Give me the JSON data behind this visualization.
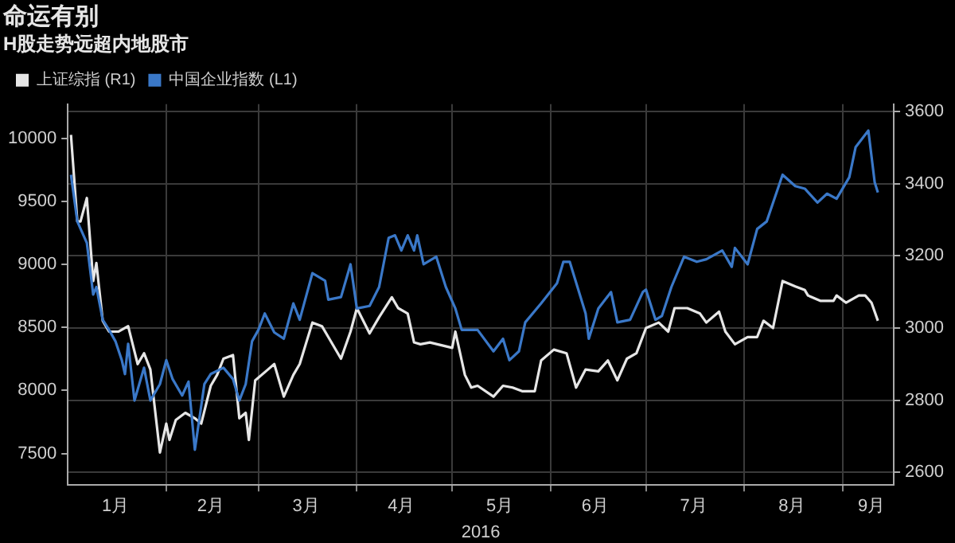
{
  "chart_data": {
    "type": "line",
    "title": "命运有别",
    "subtitle": "H股走势远超内地股市",
    "xlabel": "2016",
    "xlim": [
      "2016-01-01",
      "2016-09-17"
    ],
    "xticks": [
      {
        "value": "2016-01-16",
        "label": "1月"
      },
      {
        "value": "2016-02-01",
        "label": null
      },
      {
        "value": "2016-02-15",
        "label": "2月"
      },
      {
        "value": "2016-03-01",
        "label": null
      },
      {
        "value": "2016-03-16",
        "label": "3月"
      },
      {
        "value": "2016-04-01",
        "label": null
      },
      {
        "value": "2016-04-15",
        "label": "4月"
      },
      {
        "value": "2016-05-01",
        "label": null
      },
      {
        "value": "2016-05-16",
        "label": "5月"
      },
      {
        "value": "2016-06-01",
        "label": null
      },
      {
        "value": "2016-06-15",
        "label": "6月"
      },
      {
        "value": "2016-07-01",
        "label": null
      },
      {
        "value": "2016-07-16",
        "label": "7月"
      },
      {
        "value": "2016-08-01",
        "label": null
      },
      {
        "value": "2016-08-16",
        "label": "8月"
      },
      {
        "value": "2016-09-01",
        "label": null
      },
      {
        "value": "2016-09-10",
        "label": "9月"
      }
    ],
    "ylim": [
      7250,
      10270
    ],
    "yticks": [
      7500,
      8000,
      8500,
      9000,
      9500,
      10000
    ],
    "y2lim": [
      2565,
      3620
    ],
    "y2ticks": [
      2600,
      2800,
      3000,
      3200,
      3400,
      3600
    ],
    "grid": true,
    "legend": "top left",
    "marker": "none",
    "line_style": "solid",
    "series": [
      {
        "name": "上证综指 (R1)",
        "color": "#e6e6e6",
        "axis": "y2",
        "x": [
          "2016-01-02",
          "2016-01-04",
          "2016-01-05",
          "2016-01-07",
          "2016-01-09",
          "2016-01-10",
          "2016-01-12",
          "2016-01-14",
          "2016-01-17",
          "2016-01-20",
          "2016-01-23",
          "2016-01-25",
          "2016-01-27",
          "2016-01-30",
          "2016-02-01",
          "2016-02-02",
          "2016-02-04",
          "2016-02-07",
          "2016-02-10",
          "2016-02-12",
          "2016-02-15",
          "2016-02-17",
          "2016-02-19",
          "2016-02-22",
          "2016-02-24",
          "2016-02-26",
          "2016-02-27",
          "2016-02-29",
          "2016-03-04",
          "2016-03-06",
          "2016-03-09",
          "2016-03-12",
          "2016-03-14",
          "2016-03-18",
          "2016-03-21",
          "2016-03-23",
          "2016-03-27",
          "2016-03-30",
          "2016-04-01",
          "2016-04-05",
          "2016-04-08",
          "2016-04-12",
          "2016-04-14",
          "2016-04-17",
          "2016-04-19",
          "2016-04-21",
          "2016-04-24",
          "2016-05-01",
          "2016-05-02",
          "2016-05-05",
          "2016-05-07",
          "2016-05-09",
          "2016-05-14",
          "2016-05-17",
          "2016-05-20",
          "2016-05-23",
          "2016-05-27",
          "2016-05-29",
          "2016-06-02",
          "2016-06-06",
          "2016-06-09",
          "2016-06-12",
          "2016-06-16",
          "2016-06-19",
          "2016-06-22",
          "2016-06-25",
          "2016-06-28",
          "2016-07-01",
          "2016-07-05",
          "2016-07-08",
          "2016-07-10",
          "2016-07-14",
          "2016-07-18",
          "2016-07-20",
          "2016-07-24",
          "2016-07-26",
          "2016-07-29",
          "2016-08-02",
          "2016-08-05",
          "2016-08-07",
          "2016-08-10",
          "2016-08-13",
          "2016-08-17",
          "2016-08-20",
          "2016-08-21",
          "2016-08-25",
          "2016-08-29",
          "2016-08-30",
          "2016-09-02",
          "2016-09-06",
          "2016-09-08",
          "2016-09-10",
          "2016-09-12"
        ],
        "values": [
          3535,
          3295,
          3295,
          3360,
          3130,
          3180,
          3020,
          2990,
          2990,
          3005,
          2900,
          2930,
          2885,
          2655,
          2735,
          2690,
          2745,
          2765,
          2750,
          2735,
          2840,
          2870,
          2915,
          2925,
          2750,
          2765,
          2690,
          2855,
          2885,
          2900,
          2810,
          2870,
          2900,
          3015,
          3005,
          2975,
          2915,
          2990,
          3055,
          2985,
          3030,
          3085,
          3055,
          3040,
          2960,
          2955,
          2960,
          2945,
          2990,
          2870,
          2835,
          2840,
          2810,
          2840,
          2835,
          2825,
          2825,
          2910,
          2940,
          2930,
          2835,
          2885,
          2880,
          2910,
          2855,
          2915,
          2930,
          3000,
          3015,
          2990,
          3055,
          3055,
          3040,
          3015,
          3045,
          2990,
          2955,
          2975,
          2975,
          3020,
          3000,
          3130,
          3115,
          3105,
          3090,
          3075,
          3075,
          3090,
          3070,
          3090,
          3090,
          3070,
          3020
        ]
      },
      {
        "name": "中国企业指数 (L1)",
        "color": "#3a78c8",
        "x": [
          "2016-01-02",
          "2016-01-04",
          "2016-01-07",
          "2016-01-09",
          "2016-01-10",
          "2016-01-12",
          "2016-01-14",
          "2016-01-16",
          "2016-01-18",
          "2016-01-19",
          "2016-01-20",
          "2016-01-22",
          "2016-01-25",
          "2016-01-27",
          "2016-01-30",
          "2016-02-01",
          "2016-02-03",
          "2016-02-06",
          "2016-02-08",
          "2016-02-10",
          "2016-02-13",
          "2016-02-15",
          "2016-02-19",
          "2016-02-22",
          "2016-02-24",
          "2016-02-26",
          "2016-02-28",
          "2016-03-01",
          "2016-03-03",
          "2016-03-06",
          "2016-03-09",
          "2016-03-12",
          "2016-03-14",
          "2016-03-18",
          "2016-03-22",
          "2016-03-23",
          "2016-03-27",
          "2016-03-30",
          "2016-04-01",
          "2016-04-05",
          "2016-04-08",
          "2016-04-11",
          "2016-04-13",
          "2016-04-15",
          "2016-04-17",
          "2016-04-19",
          "2016-04-20",
          "2016-04-22",
          "2016-04-26",
          "2016-04-29",
          "2016-05-02",
          "2016-05-04",
          "2016-05-09",
          "2016-05-14",
          "2016-05-17",
          "2016-05-19",
          "2016-05-22",
          "2016-05-24",
          "2016-05-29",
          "2016-06-03",
          "2016-06-05",
          "2016-06-07",
          "2016-06-12",
          "2016-06-13",
          "2016-06-16",
          "2016-06-20",
          "2016-06-22",
          "2016-06-26",
          "2016-06-30",
          "2016-07-01",
          "2016-07-04",
          "2016-07-06",
          "2016-07-09",
          "2016-07-13",
          "2016-07-17",
          "2016-07-20",
          "2016-07-25",
          "2016-07-28",
          "2016-07-29",
          "2016-08-02",
          "2016-08-05",
          "2016-08-08",
          "2016-08-13",
          "2016-08-17",
          "2016-08-20",
          "2016-08-24",
          "2016-08-27",
          "2016-08-30",
          "2016-09-03",
          "2016-09-05",
          "2016-09-09",
          "2016-09-11",
          "2016-09-12"
        ],
        "values": [
          9710,
          9340,
          9170,
          8760,
          8820,
          8560,
          8480,
          8390,
          8240,
          8130,
          8370,
          7920,
          8180,
          7920,
          8050,
          8240,
          8090,
          7960,
          8070,
          7530,
          8050,
          8130,
          8180,
          8090,
          7920,
          8050,
          8390,
          8480,
          8610,
          8460,
          8410,
          8690,
          8560,
          8930,
          8870,
          8720,
          8740,
          9000,
          8650,
          8670,
          8820,
          9210,
          9230,
          9110,
          9230,
          9110,
          9230,
          9000,
          9060,
          8820,
          8650,
          8480,
          8480,
          8310,
          8410,
          8240,
          8310,
          8540,
          8690,
          8850,
          9020,
          9020,
          8610,
          8410,
          8650,
          8780,
          8540,
          8560,
          8780,
          8800,
          8560,
          8590,
          8820,
          9060,
          9020,
          9040,
          9110,
          8980,
          9130,
          9000,
          9280,
          9340,
          9710,
          9620,
          9600,
          9490,
          9560,
          9520,
          9690,
          9930,
          10060,
          9650,
          9570
        ]
      }
    ]
  }
}
